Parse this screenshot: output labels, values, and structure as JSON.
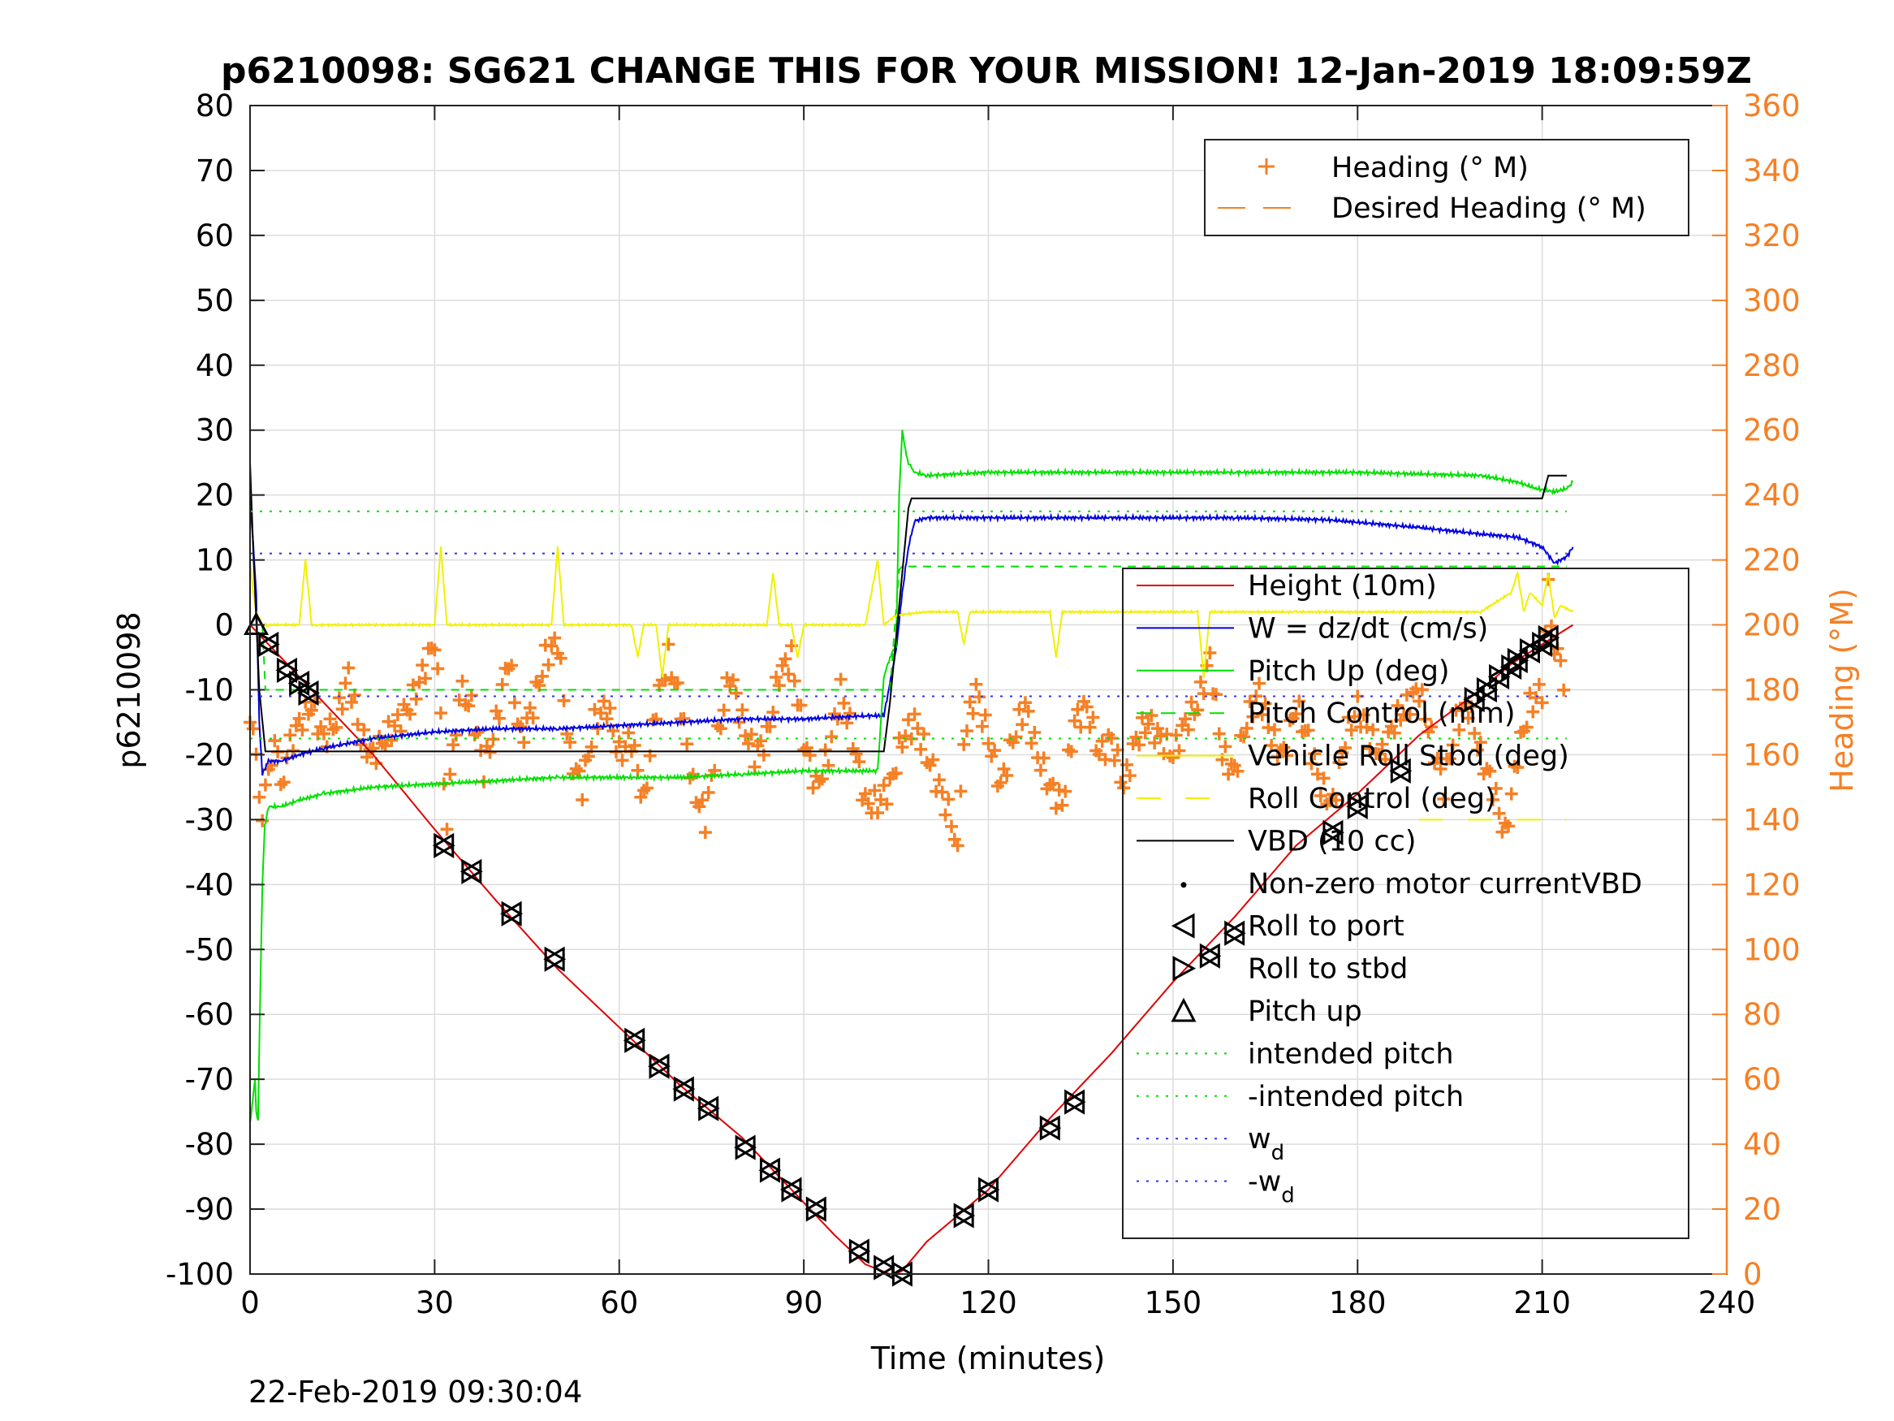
{
  "colors": {
    "height": "#e00000",
    "w": "#0000e0",
    "pitch": "#00e000",
    "roll": "#f0f000",
    "vbd": "#000000",
    "heading": "#f58025",
    "wd": "#3030f0",
    "grid": "#dcdcdc"
  },
  "icons": {
    "roll_port": "triangle-left-marker",
    "roll_stbd": "triangle-right-marker",
    "pitch_up": "triangle-up-marker",
    "motor": "dot-marker",
    "heading": "plus-marker"
  },
  "chart_data": {
    "type": "line",
    "title": "p6210098: SG621 CHANGE THIS FOR YOUR MISSION! 12-Jan-2019 18:09:59Z",
    "xlabel": "Time (minutes)",
    "ylabel_left": "p6210098",
    "ylabel_right": "Heading (°M)",
    "timestamp": "22-Feb-2019 09:30:04",
    "xlim": [
      0,
      240
    ],
    "ylim_left": [
      -100,
      80
    ],
    "ylim_right": [
      0,
      360
    ],
    "x_ticks": [
      "0",
      "30",
      "60",
      "90",
      "120",
      "150",
      "180",
      "210",
      "240"
    ],
    "y_ticks_left": [
      "80",
      "70",
      "60",
      "50",
      "40",
      "30",
      "20",
      "10",
      "0",
      "-10",
      "-20",
      "-30",
      "-40",
      "-50",
      "-60",
      "-70",
      "-80",
      "-90",
      "-100"
    ],
    "y_ticks_right": [
      "360",
      "340",
      "320",
      "300",
      "280",
      "260",
      "240",
      "220",
      "200",
      "180",
      "160",
      "140",
      "120",
      "100",
      "80",
      "60",
      "40",
      "20",
      "0"
    ],
    "grid": true,
    "legend_top": {
      "placement": "top-right",
      "entries": [
        "Heading (° M)",
        "Desired Heading (° M)"
      ]
    },
    "legend_main": {
      "placement": "right",
      "entries": [
        {
          "text": "Height (10m)"
        },
        {
          "text": "W = dz/dt (cm/s)"
        },
        {
          "text": "Pitch Up (deg)"
        },
        {
          "text": "Pitch Control (mm)"
        },
        {
          "text": "Vehicle Roll Stbd (deg)"
        },
        {
          "text": "Roll Control (deg)"
        },
        {
          "text": "VBD (10 cc)"
        },
        {
          "text": "Non-zero motor currentVBD"
        },
        {
          "text": "Roll to port"
        },
        {
          "text": "Roll to stbd"
        },
        {
          "text": "Pitch up"
        },
        {
          "text": "intended pitch"
        },
        {
          "text": "-intended pitch"
        },
        {
          "text": "w",
          "sub": "d"
        },
        {
          "text": "-w",
          "sub": "d"
        }
      ]
    },
    "series": [
      {
        "name": "Height (10m)",
        "axis": "left",
        "x": [
          0,
          5,
          10,
          20,
          30,
          40,
          50,
          60,
          70,
          80,
          90,
          95,
          100,
          104,
          105,
          106,
          110,
          120,
          130,
          140,
          150,
          160,
          170,
          180,
          190,
          200,
          205,
          210,
          215
        ],
        "y": [
          0,
          -5,
          -10,
          -20,
          -31.5,
          -42.5,
          -53,
          -62,
          -71,
          -79,
          -89,
          -94,
          -98.5,
          -100,
          -100,
          -99.5,
          -95,
          -87,
          -76,
          -66,
          -55,
          -45,
          -34,
          -26,
          -17,
          -10,
          -6,
          -3,
          0
        ]
      },
      {
        "name": "W = dz/dt (cm/s)",
        "axis": "left",
        "x": [
          0,
          1,
          1.5,
          2,
          3,
          5,
          8,
          12,
          20,
          30,
          40,
          50,
          60,
          70,
          80,
          90,
          100,
          103,
          104,
          105,
          106,
          107,
          108,
          110,
          120,
          140,
          160,
          175,
          180,
          190,
          200,
          206,
          210,
          212,
          214,
          215
        ],
        "y": [
          20,
          5,
          -15,
          -23,
          -21,
          -21,
          -20,
          -19,
          -17.5,
          -16.5,
          -16,
          -16,
          -15.5,
          -15,
          -14.5,
          -14.5,
          -14,
          -14,
          -9,
          -4,
          5,
          12,
          16,
          16.5,
          16.5,
          16.5,
          16.5,
          16.2,
          15.8,
          15,
          14,
          13.5,
          12,
          9.5,
          10.5,
          12
        ]
      },
      {
        "name": "Pitch Up (deg)",
        "axis": "left",
        "x": [
          0,
          0.8,
          1,
          1.3,
          1.6,
          2,
          2.4,
          3,
          5,
          8,
          12,
          20,
          30,
          40,
          50,
          60,
          70,
          80,
          90,
          100,
          102,
          103,
          104,
          105,
          105.5,
          106,
          106.5,
          107,
          108,
          110,
          120,
          140,
          160,
          180,
          200,
          206,
          209,
          212,
          214,
          215
        ],
        "y": [
          -77,
          -70,
          -75,
          -76,
          -60,
          -40,
          -31,
          -28,
          -28,
          -27,
          -26,
          -25,
          -24.5,
          -24,
          -23.5,
          -23.5,
          -23.5,
          -23,
          -22.5,
          -22.5,
          -22.5,
          -8,
          -5,
          -3,
          20,
          30,
          27,
          25,
          23.5,
          23,
          23.5,
          23.5,
          23.5,
          23.5,
          23,
          22,
          21,
          20.5,
          21,
          22
        ]
      },
      {
        "name": "Pitch Control (mm)",
        "axis": "left",
        "dash": "10,8",
        "x": [
          0,
          2,
          2.5,
          103,
          104,
          105.5,
          106,
          214
        ],
        "y": [
          0,
          0,
          -10,
          -10,
          -10,
          8.5,
          9,
          9
        ]
      },
      {
        "name": "Vehicle Roll Stbd (deg)",
        "axis": "left",
        "x": [
          0,
          0.5,
          1,
          2,
          3,
          5,
          8,
          9,
          10,
          11,
          15,
          30,
          31,
          32,
          33,
          45,
          49,
          50,
          51,
          60,
          62,
          63,
          64,
          66,
          67,
          68,
          70,
          72,
          80,
          84,
          85,
          86,
          88,
          89,
          90,
          95,
          100,
          102,
          103,
          105,
          110,
          115,
          116,
          117,
          120,
          125,
          130,
          131,
          132,
          135,
          140,
          150,
          154,
          155,
          156,
          160,
          170,
          180,
          190,
          200,
          205,
          206,
          207,
          208,
          210,
          211,
          212,
          213,
          215
        ],
        "y": [
          10,
          5,
          2,
          0,
          0,
          0,
          0,
          10,
          0,
          0,
          0,
          0,
          12,
          0,
          0,
          0,
          0,
          12,
          0,
          0,
          0,
          -5,
          0,
          0,
          -8,
          0,
          0,
          0,
          0,
          0,
          8,
          0,
          0,
          -5,
          0,
          0,
          0,
          10,
          0,
          1.5,
          2,
          2,
          -3,
          2,
          2,
          2,
          2,
          -5,
          2,
          2,
          2,
          2,
          2,
          -8,
          2,
          2,
          2,
          2,
          2,
          2,
          5,
          8,
          2,
          5,
          3,
          8,
          1,
          3,
          2
        ]
      },
      {
        "name": "Roll Control (deg)",
        "axis": "left",
        "dash": "30,30",
        "x": [
          190,
          214
        ],
        "y": [
          -30,
          -30
        ]
      },
      {
        "name": "VBD (10 cc)",
        "axis": "left",
        "x": [
          0,
          0.5,
          1.5,
          2.5,
          3,
          102,
          103,
          104,
          105,
          106,
          107,
          107.5,
          210,
          211,
          214
        ],
        "y": [
          25,
          12,
          -10,
          -19.5,
          -19.5,
          -19.5,
          -19.5,
          -12,
          -2,
          8,
          18,
          19.5,
          19.5,
          23,
          23
        ]
      },
      {
        "name": "intended pitch",
        "axis": "left",
        "color": "pitch",
        "dash": "3,9",
        "x": [
          0,
          214
        ],
        "y": [
          17.5,
          17.5
        ]
      },
      {
        "name": "-intended pitch",
        "axis": "left",
        "color": "pitch",
        "dash": "3,9",
        "x": [
          0,
          214
        ],
        "y": [
          -17.5,
          -17.5
        ]
      },
      {
        "name": "w_d",
        "axis": "left",
        "color": "wd",
        "dash": "3,9",
        "x": [
          0,
          214
        ],
        "y": [
          11,
          11
        ]
      },
      {
        "name": "-w_d",
        "axis": "left",
        "color": "wd",
        "dash": "3,9",
        "x": [
          0,
          214
        ],
        "y": [
          -11,
          -11
        ]
      }
    ],
    "heading_series": {
      "name": "Heading (° M)",
      "axis": "right",
      "x": [
        0,
        1,
        2,
        3,
        4,
        5,
        6,
        8,
        10,
        12,
        14,
        16,
        18,
        20,
        22,
        24,
        26,
        28,
        30,
        31,
        32,
        33,
        34,
        36,
        38,
        40,
        42,
        44,
        46,
        48,
        50,
        52,
        54,
        56,
        58,
        60,
        62,
        64,
        66,
        68,
        70,
        72,
        74,
        76,
        78,
        80,
        82,
        84,
        86,
        88,
        90,
        92,
        94,
        96,
        98,
        100,
        102,
        104,
        106,
        108,
        110,
        112,
        114,
        115,
        116,
        118,
        120,
        122,
        124,
        126,
        128,
        130,
        132,
        134,
        136,
        138,
        140,
        142,
        144,
        146,
        148,
        150,
        152,
        154,
        156,
        158,
        160,
        162,
        164,
        166,
        168,
        170,
        172,
        174,
        176,
        178,
        180,
        182,
        184,
        186,
        188,
        190,
        192,
        194,
        196,
        198,
        200,
        202,
        204,
        206,
        208,
        210,
        211,
        212,
        213,
        214
      ],
      "y": [
        170,
        160,
        140,
        155,
        165,
        150,
        160,
        170,
        175,
        165,
        170,
        185,
        165,
        160,
        165,
        170,
        175,
        185,
        195,
        170,
        140,
        160,
        180,
        175,
        155,
        170,
        190,
        165,
        175,
        190,
        195,
        160,
        150,
        170,
        175,
        160,
        165,
        145,
        175,
        190,
        175,
        150,
        140,
        165,
        185,
        170,
        160,
        165,
        185,
        190,
        165,
        150,
        160,
        180,
        165,
        145,
        145,
        150,
        165,
        170,
        160,
        150,
        140,
        130,
        165,
        180,
        165,
        150,
        165,
        175,
        160,
        150,
        145,
        170,
        175,
        160,
        165,
        150,
        165,
        170,
        165,
        160,
        170,
        175,
        190,
        160,
        155,
        170,
        180,
        165,
        160,
        175,
        165,
        150,
        145,
        165,
        175,
        165,
        160,
        170,
        175,
        180,
        165,
        150,
        170,
        175,
        160,
        150,
        135,
        160,
        175,
        180,
        210,
        195,
        185,
        180
      ]
    },
    "desired_heading": {
      "name": "Desired Heading (° M)",
      "axis": "right",
      "values": []
    },
    "markers": {
      "pitch_up": {
        "x": [
          1
        ],
        "y": [
          0
        ]
      },
      "roll_stbd_port": {
        "x": [
          3,
          6,
          8,
          9.5,
          31.5,
          36,
          42.5,
          49.5,
          62.5,
          66.5,
          70.5,
          74.5,
          80.5,
          84.5,
          88,
          92,
          99,
          103,
          106,
          116,
          120,
          130,
          134,
          176,
          180,
          187,
          156,
          160,
          199,
          201,
          203,
          205,
          206,
          208,
          210,
          211
        ],
        "y": [
          -3,
          -7,
          -9,
          -10.5,
          -34,
          -38,
          -44.5,
          -51.5,
          -64,
          -68,
          -71.5,
          -74.5,
          -80.5,
          -84,
          -87,
          -90,
          -96.5,
          -99,
          -100,
          -91,
          -87,
          -77.5,
          -73.5,
          -32,
          -28,
          -22.5,
          -51,
          -47.5,
          -11.5,
          -10,
          -8,
          -6.5,
          -5.5,
          -4,
          -3,
          -2
        ]
      }
    }
  }
}
